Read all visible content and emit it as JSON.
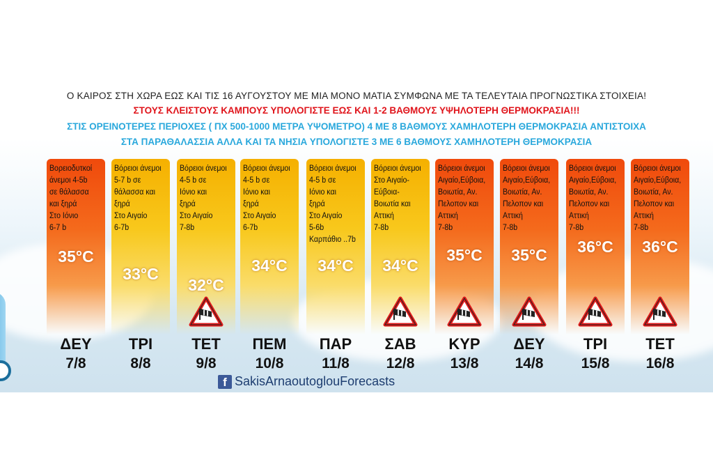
{
  "header": {
    "line1": "Ο ΚΑΙΡΟΣ ΣΤΗ ΧΩΡΑ ΕΩΣ ΚΑΙ ΤΙΣ 16 ΑΥΓΟΥΣΤΟΥ ΜΕ ΜΙΑ ΜΟΝΟ ΜΑΤΙΑ ΣΥΜΦΩΝΑ ΜΕ ΤΑ ΤΕΛΕΥΤΑΙΑ ΠΡΟΓΝΩΣΤΙΚΑ ΣΤΟΙΧΕΙΑ!",
    "line2": "ΣΤΟΥΣ ΚΛΕΙΣΤΟΥΣ ΚΑΜΠΟΥΣ ΥΠΟΛΟΓΙΣΤΕ ΕΩΣ ΚΑΙ 1-2 ΒΑΘΜΟΥΣ ΥΨΗΛΟΤΕΡΗ ΘΕΡΜΟΚΡΑΣΙΑ!!!",
    "line3": "ΣΤΙΣ ΟΡΕΙΝΟΤΕΡΕΣ ΠΕΡΙΟΧΕΣ ( ΠΧ 500-1000 ΜΕΤΡΑ ΥΨΟΜΕΤΡΟ) 4 ΜΕ 8 ΒΑΘΜΟΥΣ ΧΑΜΗΛΟΤΕΡΗ ΘΕΡΜΟΚΡΑΣΙΑ ΑΝΤΙΣΤΟΙΧΑ",
    "line4": "ΣΤΑ ΠΑΡΑΘΑΛΑΣΣΙΑ ΑΛΛΑ ΚΑΙ ΤΑ ΝΗΣΙΑ ΥΠΟΛΟΓΙΣΤΕ 3 ΜΕ 6 ΒΑΘΜΟΥΣ ΧΑΜΗΛΟΤΕΡΗ ΘΕΡΜΟΚΡΑΣΙΑ"
  },
  "days": [
    {
      "day": "ΔΕΥ",
      "date": "7/8",
      "temp": "35°C",
      "style": "hot",
      "warning": false,
      "text": "Βορειοδυτκοί\nάνεμοι 4-5b\nσε θάλασσα\nκαι ξηρά\nΣτο Ιόνιο\n6-7 b"
    },
    {
      "day": "ΤΡΙ",
      "date": "8/8",
      "temp": "33°C",
      "style": "warm",
      "warning": false,
      "text": "Βόρειοι άνεμοι\n5-7 b σε\nθάλασσα και\nξηρά\nΣτο Αιγαίο\n6-7b"
    },
    {
      "day": "ΤΕΤ",
      "date": "9/8",
      "temp": "32°C",
      "style": "warm",
      "warning": true,
      "text": "Βόρειοι άνεμοι\n4-5 b σε\nΙόνιο και\nξηρά\nΣτο Αιγαίο\n7-8b"
    },
    {
      "day": "ΠΕΜ",
      "date": "10/8",
      "temp": "34°C",
      "style": "warm",
      "warning": false,
      "text": "Βόρειοι άνεμοι\n4-5 b σε\nΙόνιο και\nξηρά\nΣτο Αιγαίο\n6-7b"
    },
    {
      "day": "ΠΑΡ",
      "date": "11/8",
      "temp": "34°C",
      "style": "warm",
      "warning": false,
      "text": "Βόρειοι άνεμοι\n4-5 b σε\nΙόνιο και\nξηρά\nΣτο Αιγαίο\n5-6b\nΚαρπάθιο ..7b"
    },
    {
      "day": "ΣΑΒ",
      "date": "12/8",
      "temp": "34°C",
      "style": "warm",
      "warning": true,
      "text": "Βόρειοι άνεμοι\nΣτο Αιγαίο-\nΕύβοια-\nΒοιωτία και\nΑττική\n7-8b"
    },
    {
      "day": "ΚΥΡ",
      "date": "13/8",
      "temp": "35°C",
      "style": "hot",
      "warning": true,
      "text": "Βόρειοι άνεμοι\nΑιγαίο,Εύβοια,\nΒοιωτία, Αν.\nΠελοπον και\nΑττική\n7-8b"
    },
    {
      "day": "ΔΕΥ",
      "date": "14/8",
      "temp": "35°C",
      "style": "hot",
      "warning": true,
      "text": "Βόρειοι άνεμοι\nΑιγαίο,Εύβοια,\nΒοιωτία, Αν.\nΠελοπον και\nΑττική\n7-8b"
    },
    {
      "day": "ΤΡΙ",
      "date": "15/8",
      "temp": "36°C",
      "style": "hot",
      "warning": true,
      "text": "Βόρειοι άνεμοι\nΑιγαίο,Εύβοια,\nΒοιωτία, Αν.\nΠελοπον και\nΑττική\n7-8b"
    },
    {
      "day": "ΤΕΤ",
      "date": "16/8",
      "temp": "36°C",
      "style": "hot",
      "warning": true,
      "text": "Βόρειοι άνεμοι\nΑιγαίο,Εύβοια,\nΒοιωτία, Αν.\nΠελοπον και\nΑττική\n7-8b"
    }
  ],
  "footer": {
    "facebook_icon": "facebook-icon",
    "page_name": "SakisArnaoutoglouForecasts"
  },
  "icons": {
    "warning": "wind-warning-icon"
  },
  "colors": {
    "hot": "#f04a0c",
    "warm": "#f5b000",
    "red_text": "#e0141b",
    "blue_text": "#2aa8dc"
  }
}
